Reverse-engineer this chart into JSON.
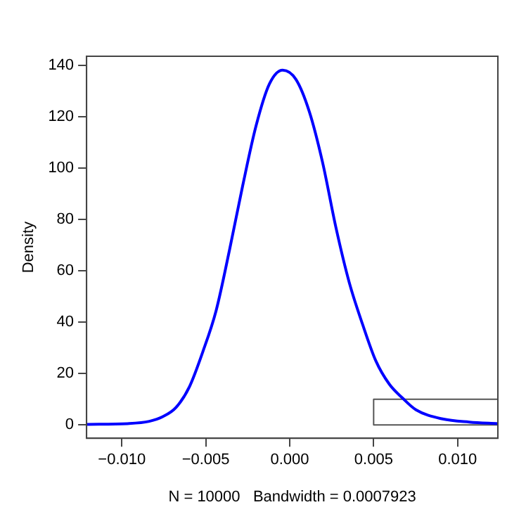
{
  "chart_data": {
    "type": "line",
    "xlabel": "N = 10000   Bandwidth = 0.0007923",
    "ylabel": "Density",
    "xlim": [
      -0.0121,
      0.0124
    ],
    "ylim": [
      -5.2,
      143.6
    ],
    "xticks": [
      {
        "value": -0.01,
        "label": "−0.010"
      },
      {
        "value": -0.005,
        "label": "−0.005"
      },
      {
        "value": 0,
        "label": "0.000"
      },
      {
        "value": 0.005,
        "label": "0.005"
      },
      {
        "value": 0.01,
        "label": "0.010"
      }
    ],
    "yticks": [
      0,
      20,
      40,
      60,
      80,
      100,
      120,
      140
    ],
    "legend": false,
    "marker": "none",
    "line_style": "solid",
    "series": [
      {
        "color": "#0000ff",
        "x": [
          -0.0121,
          -0.00966,
          -0.00836,
          -0.00756,
          -0.00677,
          -0.00597,
          -0.00518,
          -0.00438,
          -0.00359,
          -0.0028,
          -0.002,
          -0.00121,
          -0.00042,
          0.00037,
          0.00117,
          0.00196,
          0.00275,
          0.00355,
          0.00434,
          0.00514,
          0.00594,
          0.00673,
          0.00752,
          0.00911,
          0.0107,
          0.0124
        ],
        "values": [
          0.2,
          0.5,
          1.4,
          3.2,
          6.8,
          14.9,
          28.4,
          44.6,
          68,
          93.2,
          116.6,
          132.8,
          138.2,
          134.6,
          122,
          102.2,
          77,
          55.4,
          39.2,
          24.8,
          15.8,
          10.4,
          5.9,
          2.3,
          1.1,
          0.5
        ]
      },
      {
        "color": "#555555",
        "x": [
          0.0124,
          0.005,
          0.005,
          0.0124
        ],
        "values": [
          10,
          10,
          0,
          0
        ]
      }
    ]
  }
}
